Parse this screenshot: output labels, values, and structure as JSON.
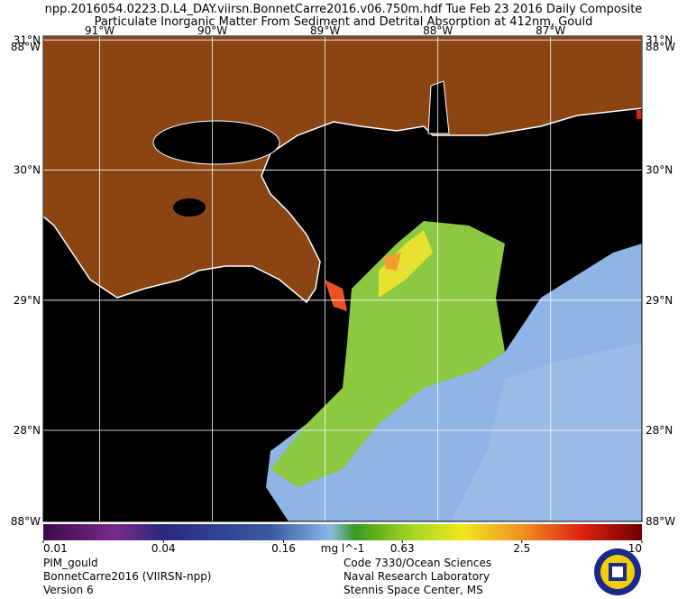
{
  "header": {
    "line1": "npp.2016054.0223.D.L4_DAY.viirsn.BonnetCarre2016.v06.750m.hdf     Tue Feb 23 2016 Daily Composite",
    "line2": "Particulate Inorganic Matter From Sediment and Detrital Absorption at 412nm, Gould"
  },
  "map": {
    "lon_range": [
      -91.5,
      -86.19
    ],
    "lat_range": [
      27.3,
      31.03
    ],
    "lon_ticks": [
      {
        "value": -91,
        "label": "91°W"
      },
      {
        "value": -90,
        "label": "90°W"
      },
      {
        "value": -89,
        "label": "89°W"
      },
      {
        "value": -88,
        "label": "88°W"
      },
      {
        "value": -87,
        "label": "87°W"
      }
    ],
    "lat_ticks": [
      {
        "value": 31,
        "label": "31°N"
      },
      {
        "value": 30,
        "label": "30°N"
      },
      {
        "value": 29,
        "label": "29°N"
      },
      {
        "value": 28,
        "label": "28°N"
      }
    ],
    "corner_label": "88°W"
  },
  "colorbar": {
    "log": true,
    "range": [
      0.01,
      10
    ],
    "ticks": [
      0.01,
      0.04,
      0.16,
      0.63,
      2.5,
      10
    ],
    "unit": "mg l^-1"
  },
  "footer": {
    "left": [
      "PIM_gould",
      "BonnetCarre2016 (VIIRSN-npp)",
      "Version 6"
    ],
    "right": [
      "Code 7330/Ocean Sciences",
      "Naval Research Laboratory",
      "Stennis Space Center, MS"
    ]
  }
}
